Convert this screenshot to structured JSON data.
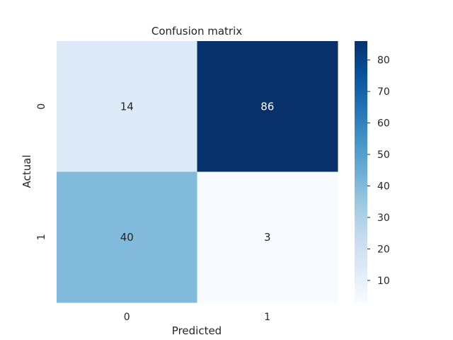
{
  "chart_data": {
    "type": "heatmap",
    "title": "Confusion matrix",
    "xlabel": "Predicted",
    "ylabel": "Actual",
    "x_categories": [
      "0",
      "1"
    ],
    "y_categories": [
      "0",
      "1"
    ],
    "values": [
      [
        14,
        86
      ],
      [
        40,
        3
      ]
    ],
    "colormap": "Blues",
    "colorbar": {
      "ticks": [
        10,
        20,
        30,
        40,
        50,
        60,
        70,
        80
      ],
      "range": [
        3,
        86
      ]
    },
    "annotations": true
  }
}
